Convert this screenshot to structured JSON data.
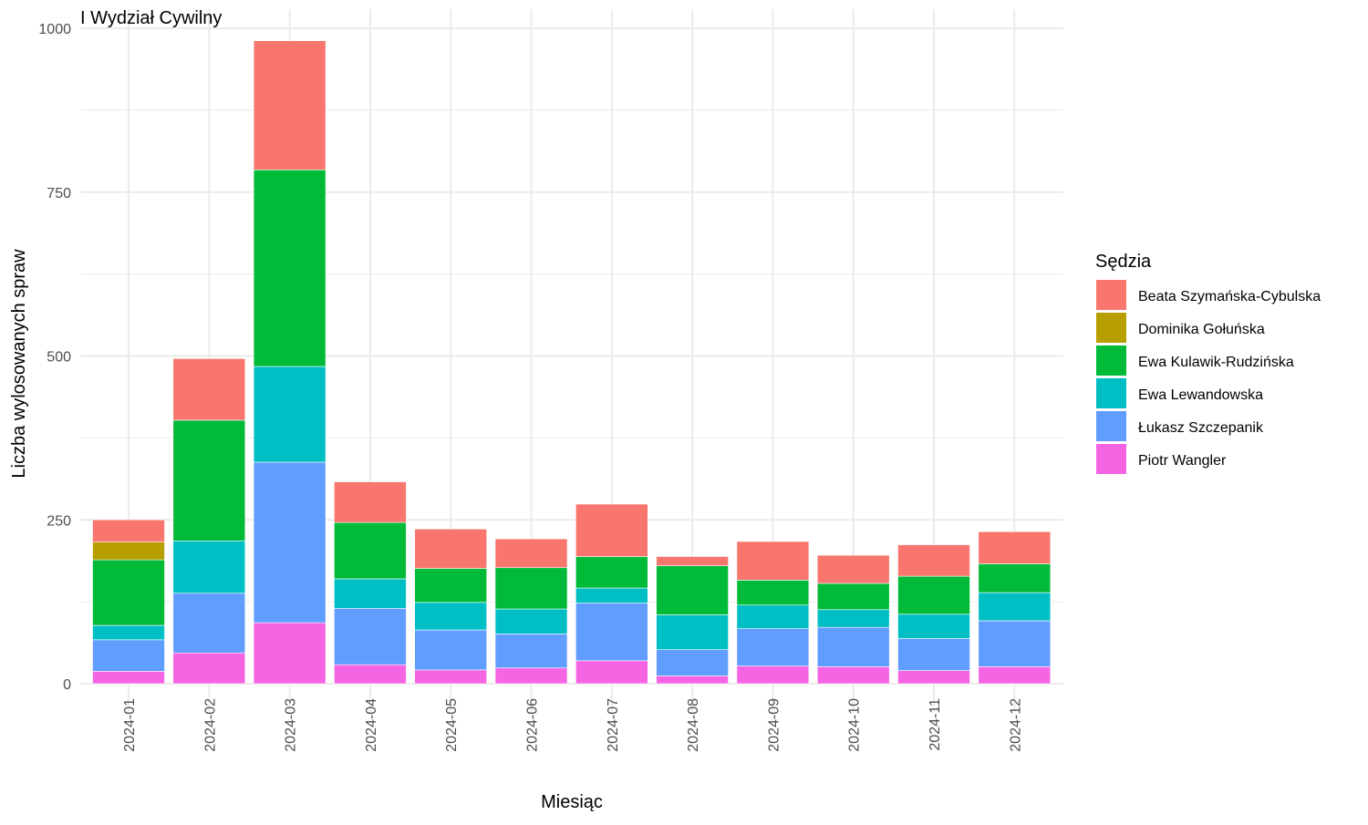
{
  "chart_data": {
    "type": "bar",
    "stacked": true,
    "title": "I Wydział Cywilny",
    "xlabel": "Miesiąc",
    "ylabel": "Liczba wylosowanych spraw",
    "ylim": [
      0,
      1000
    ],
    "yticks": [
      0,
      250,
      500,
      750,
      1000
    ],
    "grid": true,
    "legend": {
      "title": "Sędzia",
      "position": "right"
    },
    "categories": [
      "2024-01",
      "2024-02",
      "2024-03",
      "2024-04",
      "2024-05",
      "2024-06",
      "2024-07",
      "2024-08",
      "2024-09",
      "2024-10",
      "2024-11",
      "2024-12"
    ],
    "series": [
      {
        "name": "Beata Szymańska-Cybulska",
        "color": "#F8766D",
        "values": [
          34,
          94,
          197,
          62,
          60,
          44,
          80,
          14,
          59,
          43,
          48,
          49
        ]
      },
      {
        "name": "Dominika Gołuńska",
        "color": "#B79F00",
        "values": [
          27,
          0,
          0,
          0,
          0,
          0,
          0,
          0,
          0,
          0,
          0,
          0
        ]
      },
      {
        "name": "Ewa Kulawik-Rudzińska",
        "color": "#00BA38",
        "values": [
          100,
          184,
          300,
          86,
          52,
          63,
          48,
          75,
          38,
          40,
          58,
          44
        ]
      },
      {
        "name": "Ewa Lewandowska",
        "color": "#00BFC4",
        "values": [
          22,
          80,
          146,
          45,
          42,
          38,
          23,
          53,
          36,
          27,
          37,
          43
        ]
      },
      {
        "name": "Łukasz Szczepanik",
        "color": "#619CFF",
        "values": [
          48,
          91,
          245,
          86,
          61,
          52,
          88,
          40,
          57,
          60,
          49,
          70
        ]
      },
      {
        "name": "Piotr Wangler",
        "color": "#F564E3",
        "values": [
          19,
          47,
          93,
          29,
          21,
          24,
          35,
          12,
          27,
          26,
          20,
          26
        ]
      }
    ]
  }
}
